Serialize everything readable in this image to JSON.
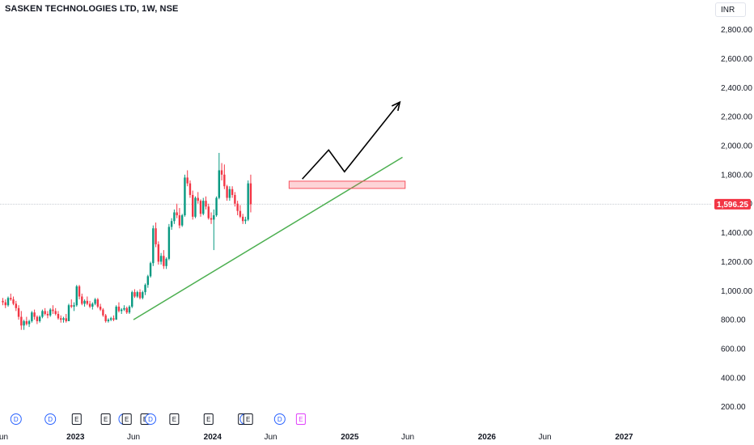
{
  "header": {
    "title": "SASKEN TECHNOLOGIES LTD, 1W, NSE",
    "currency": "INR"
  },
  "chart_data": {
    "type": "candlestick",
    "title": "SASKEN TECHNOLOGIES LTD, 1W, NSE",
    "ylim": [
      100,
      2950
    ],
    "yticks": [
      200,
      400,
      600,
      800,
      1000,
      1200,
      1400,
      1600,
      1800,
      2000,
      2200,
      2400,
      2600,
      2800
    ],
    "ytick_labels": [
      "200.00",
      "400.00",
      "600.00",
      "800.00",
      "1,000.00",
      "1,200.00",
      "1,400.00",
      "1,600.00",
      "1,800.00",
      "2,000.00",
      "2,200.00",
      "2,400.00",
      "2,600.00",
      "2,800.00"
    ],
    "x_ticks": [
      {
        "label": "Jun",
        "week": 0,
        "bold": false
      },
      {
        "label": "2023",
        "week": 28,
        "bold": true
      },
      {
        "label": "Jun",
        "week": 50,
        "bold": false
      },
      {
        "label": "2024",
        "week": 80,
        "bold": true
      },
      {
        "label": "Jun",
        "week": 102,
        "bold": false
      },
      {
        "label": "2025",
        "week": 132,
        "bold": true
      },
      {
        "label": "Jun",
        "week": 154,
        "bold": false
      },
      {
        "label": "2026",
        "week": 184,
        "bold": true
      },
      {
        "label": "Jun",
        "week": 206,
        "bold": false
      },
      {
        "label": "2027",
        "week": 236,
        "bold": true
      }
    ],
    "last_price": 1596.25,
    "last_price_label": "1,596.25",
    "colors": {
      "up": "#089981",
      "down": "#f23645",
      "trendline": "#4caf50",
      "zone": "#f7525f",
      "arrow": "#000000",
      "event_d": "#2962ff",
      "event_e": "#131722",
      "event_e_future": "#e040fb"
    },
    "candles_ohlc": [
      [
        930,
        950,
        900,
        920
      ],
      [
        920,
        940,
        880,
        900
      ],
      [
        900,
        960,
        890,
        950
      ],
      [
        950,
        980,
        930,
        940
      ],
      [
        940,
        960,
        900,
        910
      ],
      [
        910,
        930,
        860,
        880
      ],
      [
        880,
        900,
        800,
        820
      ],
      [
        820,
        860,
        730,
        760
      ],
      [
        760,
        800,
        730,
        790
      ],
      [
        790,
        820,
        760,
        770
      ],
      [
        770,
        800,
        750,
        790
      ],
      [
        790,
        860,
        780,
        850
      ],
      [
        850,
        870,
        800,
        820
      ],
      [
        820,
        830,
        770,
        790
      ],
      [
        790,
        830,
        780,
        820
      ],
      [
        820,
        870,
        810,
        860
      ],
      [
        860,
        880,
        830,
        840
      ],
      [
        840,
        860,
        810,
        830
      ],
      [
        830,
        880,
        820,
        870
      ],
      [
        870,
        900,
        840,
        860
      ],
      [
        860,
        880,
        830,
        840
      ],
      [
        840,
        860,
        800,
        810
      ],
      [
        810,
        830,
        780,
        800
      ],
      [
        800,
        820,
        780,
        810
      ],
      [
        810,
        840,
        780,
        790
      ],
      [
        790,
        910,
        790,
        900
      ],
      [
        900,
        940,
        880,
        890
      ],
      [
        890,
        920,
        860,
        900
      ],
      [
        900,
        1040,
        890,
        1030
      ],
      [
        1030,
        1040,
        940,
        960
      ],
      [
        960,
        980,
        900,
        910
      ],
      [
        910,
        940,
        890,
        930
      ],
      [
        930,
        960,
        900,
        910
      ],
      [
        910,
        930,
        880,
        890
      ],
      [
        890,
        920,
        870,
        910
      ],
      [
        910,
        950,
        900,
        940
      ],
      [
        940,
        950,
        880,
        890
      ],
      [
        890,
        910,
        860,
        870
      ],
      [
        870,
        880,
        820,
        830
      ],
      [
        830,
        840,
        780,
        790
      ],
      [
        790,
        810,
        780,
        800
      ],
      [
        800,
        820,
        790,
        810
      ],
      [
        810,
        830,
        790,
        800
      ],
      [
        800,
        900,
        800,
        890
      ],
      [
        890,
        920,
        850,
        860
      ],
      [
        860,
        880,
        840,
        870
      ],
      [
        870,
        900,
        860,
        880
      ],
      [
        880,
        890,
        840,
        850
      ],
      [
        850,
        900,
        840,
        890
      ],
      [
        890,
        1000,
        880,
        990
      ],
      [
        990,
        1010,
        950,
        960
      ],
      [
        960,
        1000,
        950,
        990
      ],
      [
        990,
        1010,
        940,
        950
      ],
      [
        950,
        1000,
        940,
        990
      ],
      [
        990,
        1050,
        970,
        1040
      ],
      [
        1040,
        1110,
        1020,
        1100
      ],
      [
        1100,
        1200,
        1090,
        1190
      ],
      [
        1190,
        1450,
        1170,
        1430
      ],
      [
        1430,
        1470,
        1300,
        1320
      ],
      [
        1320,
        1340,
        1180,
        1200
      ],
      [
        1200,
        1260,
        1180,
        1240
      ],
      [
        1240,
        1280,
        1150,
        1170
      ],
      [
        1170,
        1230,
        1150,
        1220
      ],
      [
        1220,
        1460,
        1210,
        1440
      ],
      [
        1440,
        1500,
        1420,
        1480
      ],
      [
        1480,
        1560,
        1460,
        1540
      ],
      [
        1540,
        1600,
        1500,
        1520
      ],
      [
        1520,
        1570,
        1430,
        1450
      ],
      [
        1450,
        1530,
        1440,
        1520
      ],
      [
        1520,
        1800,
        1510,
        1780
      ],
      [
        1780,
        1830,
        1720,
        1740
      ],
      [
        1740,
        1760,
        1640,
        1660
      ],
      [
        1660,
        1690,
        1490,
        1510
      ],
      [
        1510,
        1650,
        1500,
        1640
      ],
      [
        1640,
        1680,
        1600,
        1620
      ],
      [
        1620,
        1630,
        1510,
        1530
      ],
      [
        1530,
        1640,
        1520,
        1620
      ],
      [
        1620,
        1650,
        1560,
        1580
      ],
      [
        1580,
        1600,
        1490,
        1500
      ],
      [
        1500,
        1540,
        1460,
        1490
      ],
      [
        1490,
        1560,
        1280,
        1520
      ],
      [
        1520,
        1650,
        1510,
        1640
      ],
      [
        1640,
        1950,
        1630,
        1830
      ],
      [
        1830,
        1880,
        1760,
        1800
      ],
      [
        1800,
        1870,
        1700,
        1720
      ],
      [
        1720,
        1730,
        1620,
        1640
      ],
      [
        1640,
        1720,
        1620,
        1700
      ],
      [
        1700,
        1720,
        1640,
        1660
      ],
      [
        1660,
        1680,
        1580,
        1600
      ],
      [
        1600,
        1620,
        1520,
        1550
      ],
      [
        1550,
        1590,
        1500,
        1510
      ],
      [
        1510,
        1530,
        1460,
        1480
      ],
      [
        1480,
        1510,
        1460,
        1490
      ],
      [
        1490,
        1760,
        1480,
        1740
      ],
      [
        1740,
        1800,
        1540,
        1596.25
      ]
    ],
    "trendline": {
      "from": {
        "week": 50,
        "value": 800
      },
      "to": {
        "week": 152,
        "value": 1920
      }
    },
    "resistance_zone": {
      "from_week": 109,
      "to_week": 153,
      "low": 1705,
      "high": 1755
    },
    "projection_arrow": [
      {
        "week": 114,
        "value": 1770
      },
      {
        "week": 124,
        "value": 1970
      },
      {
        "week": 130,
        "value": 1820
      },
      {
        "week": 151,
        "value": 2300
      }
    ],
    "events": [
      {
        "label": "D",
        "week": 5,
        "type": "dividend"
      },
      {
        "label": "D",
        "week": 18,
        "type": "dividend"
      },
      {
        "label": "E",
        "week": 28,
        "type": "earnings"
      },
      {
        "label": "E",
        "week": 39,
        "type": "earnings"
      },
      {
        "label": "D",
        "week": 46,
        "type": "dividend"
      },
      {
        "label": "E",
        "week": 47,
        "type": "earnings"
      },
      {
        "label": "E",
        "week": 54,
        "type": "earnings"
      },
      {
        "label": "D",
        "week": 56,
        "type": "dividend"
      },
      {
        "label": "E",
        "week": 65,
        "type": "earnings"
      },
      {
        "label": "E",
        "week": 78,
        "type": "earnings"
      },
      {
        "label": "E",
        "week": 91,
        "type": "earnings"
      },
      {
        "label": "D",
        "week": 92,
        "type": "dividend"
      },
      {
        "label": "E",
        "week": 93,
        "type": "earnings"
      },
      {
        "label": "D",
        "week": 105,
        "type": "dividend"
      },
      {
        "label": "E",
        "week": 113,
        "type": "earnings_future"
      }
    ]
  }
}
